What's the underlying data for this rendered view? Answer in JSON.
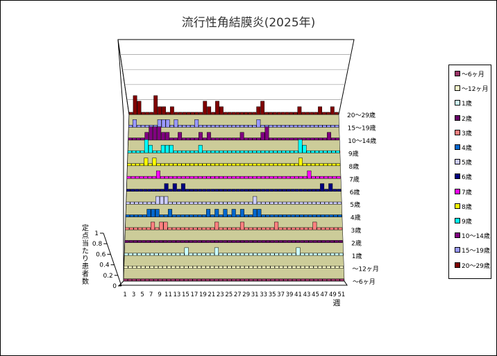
{
  "chart_data": {
    "type": "bar3d",
    "title": "流行性角結膜炎(2025年)",
    "xlabel": "週",
    "ylabel": "定点当たり患者数",
    "zlim": [
      0,
      1
    ],
    "z_ticks": [
      "0",
      "0.2",
      "0.4",
      "0.6",
      "0.8",
      "1"
    ],
    "x_ticks": [
      "1",
      "3",
      "5",
      "7",
      "9",
      "11",
      "13",
      "15",
      "17",
      "19",
      "21",
      "23",
      "25",
      "27",
      "29",
      "31",
      "33",
      "35",
      "37",
      "39",
      "41",
      "43",
      "45",
      "47",
      "49",
      "51"
    ],
    "weeks": 51,
    "series": [
      {
        "name": "～6ヶ月",
        "color": "#993366",
        "spikes": []
      },
      {
        "name": "～12ヶ月",
        "color": "#ffffcc",
        "spikes": []
      },
      {
        "name": "1歳",
        "color": "#ccffff",
        "spikes": [
          [
            15,
            0.1
          ],
          [
            22,
            0.1
          ],
          [
            41,
            0.1
          ]
        ]
      },
      {
        "name": "2歳",
        "color": "#660066",
        "spikes": []
      },
      {
        "name": "3歳",
        "color": "#ff8080",
        "spikes": [
          [
            7,
            0.1
          ],
          [
            9,
            0.1
          ],
          [
            10,
            0.1
          ],
          [
            22,
            0.1
          ],
          [
            28,
            0.1
          ],
          [
            36,
            0.1
          ],
          [
            45,
            0.1
          ]
        ]
      },
      {
        "name": "4歳",
        "color": "#0066cc",
        "spikes": [
          [
            6,
            0.1
          ],
          [
            7,
            0.1
          ],
          [
            8,
            0.1
          ],
          [
            11,
            0.1
          ],
          [
            20,
            0.1
          ],
          [
            22,
            0.1
          ],
          [
            24,
            0.1
          ],
          [
            26,
            0.1
          ],
          [
            28,
            0.1
          ],
          [
            31,
            0.1
          ],
          [
            32,
            0.1
          ]
        ]
      },
      {
        "name": "5歳",
        "color": "#ccccff",
        "spikes": [
          [
            8,
            0.1
          ],
          [
            9,
            0.1
          ],
          [
            10,
            0.1
          ],
          [
            31,
            0.1
          ]
        ]
      },
      {
        "name": "6歳",
        "color": "#000080",
        "spikes": [
          [
            10,
            0.1
          ],
          [
            12,
            0.1
          ],
          [
            14,
            0.1
          ],
          [
            47,
            0.1
          ],
          [
            49,
            0.1
          ]
        ]
      },
      {
        "name": "7歳",
        "color": "#ff00ff",
        "spikes": [
          [
            8,
            0.1
          ],
          [
            44,
            0.1
          ]
        ]
      },
      {
        "name": "8歳",
        "color": "#ffff00",
        "spikes": [
          [
            5,
            0.1
          ],
          [
            7,
            0.1
          ],
          [
            42,
            0.1
          ]
        ]
      },
      {
        "name": "9歳",
        "color": "#00ffff",
        "spikes": [
          [
            5,
            0.2
          ],
          [
            6,
            0.1
          ],
          [
            9,
            0.1
          ],
          [
            10,
            0.1
          ],
          [
            11,
            0.1
          ],
          [
            18,
            0.1
          ],
          [
            42,
            0.2
          ],
          [
            43,
            0.1
          ]
        ]
      },
      {
        "name": "10～14歳",
        "color": "#800080",
        "spikes": [
          [
            5,
            0.1
          ],
          [
            6,
            0.2
          ],
          [
            7,
            0.2
          ],
          [
            8,
            0.2
          ],
          [
            9,
            0.1
          ],
          [
            10,
            0.1
          ],
          [
            13,
            0.1
          ],
          [
            18,
            0.1
          ],
          [
            20,
            0.1
          ],
          [
            28,
            0.1
          ],
          [
            33,
            0.1
          ],
          [
            34,
            0.2
          ],
          [
            49,
            0.1
          ]
        ]
      },
      {
        "name": "15～19歳",
        "color": "#9999ff",
        "spikes": [
          [
            2,
            0.1
          ],
          [
            8,
            0.1
          ],
          [
            9,
            0.1
          ],
          [
            10,
            0.1
          ],
          [
            12,
            0.1
          ],
          [
            17,
            0.1
          ],
          [
            32,
            0.1
          ]
        ]
      },
      {
        "name": "20～29歳",
        "color": "#800000",
        "spikes": [
          [
            2,
            0.3
          ],
          [
            3,
            0.2
          ],
          [
            7,
            0.3
          ],
          [
            8,
            0.1
          ],
          [
            9,
            0.1
          ],
          [
            11,
            0.1
          ],
          [
            19,
            0.2
          ],
          [
            20,
            0.1
          ],
          [
            22,
            0.2
          ],
          [
            23,
            0.1
          ],
          [
            32,
            0.1
          ],
          [
            33,
            0.2
          ],
          [
            42,
            0.1
          ],
          [
            47,
            0.1
          ],
          [
            50,
            0.1
          ]
        ]
      }
    ]
  }
}
